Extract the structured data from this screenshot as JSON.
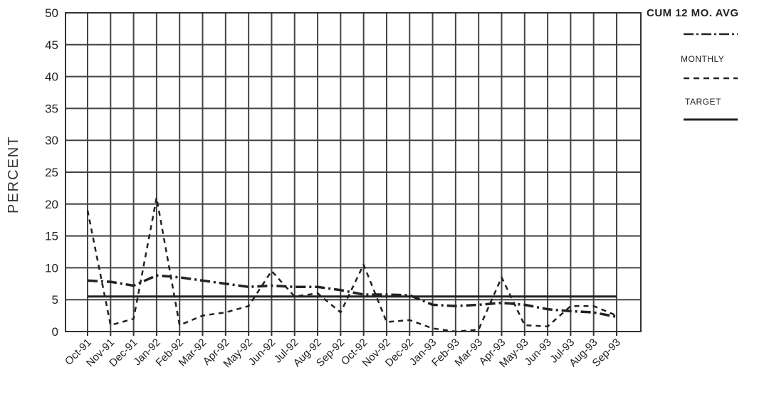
{
  "chart_data": {
    "type": "line",
    "ylabel": "PERCENT",
    "xlabel": "",
    "ylim": [
      0,
      50
    ],
    "yticks": [
      "0",
      "5",
      "10",
      "15",
      "20",
      "25",
      "30",
      "35",
      "40",
      "45",
      "50"
    ],
    "categories": [
      "Oct-91",
      "Nov-91",
      "Dec-91",
      "Jan-92",
      "Feb-92",
      "Mar-92",
      "Apr-92",
      "May-92",
      "Jun-92",
      "Jul-92",
      "Aug-92",
      "Sep-92",
      "Oct-92",
      "Nov-92",
      "Dec-92",
      "Jan-93",
      "Feb-93",
      "Mar-93",
      "Apr-93",
      "May-93",
      "Jun-93",
      "Jul-93",
      "Aug-93",
      "Sep-93"
    ],
    "grid": true,
    "legend_position": "top-right",
    "series": [
      {
        "name": "CUM 12 MO. AVG",
        "style": "dash-dot",
        "values": [
          8.0,
          7.8,
          7.2,
          8.8,
          8.5,
          8.0,
          7.5,
          7.0,
          7.2,
          7.0,
          7.0,
          6.5,
          5.8,
          5.8,
          5.7,
          4.2,
          4.0,
          4.2,
          4.5,
          4.2,
          3.5,
          3.2,
          3.0,
          2.3
        ]
      },
      {
        "name": "MONTHLY",
        "style": "dashed",
        "values": [
          19.0,
          1.0,
          2.0,
          21.0,
          1.0,
          2.5,
          3.0,
          4.0,
          9.5,
          5.5,
          6.0,
          3.0,
          10.5,
          1.5,
          1.8,
          0.5,
          0.0,
          0.3,
          8.5,
          1.0,
          0.8,
          4.0,
          4.0,
          2.5
        ]
      },
      {
        "name": "TARGET",
        "style": "solid",
        "values": [
          5.5,
          5.5,
          5.5,
          5.5,
          5.5,
          5.5,
          5.5,
          5.5,
          5.5,
          5.5,
          5.5,
          5.5,
          5.5,
          5.5,
          5.5,
          5.5,
          5.5,
          5.5,
          5.5,
          5.5,
          5.5,
          5.5,
          5.5,
          5.5
        ]
      }
    ]
  }
}
